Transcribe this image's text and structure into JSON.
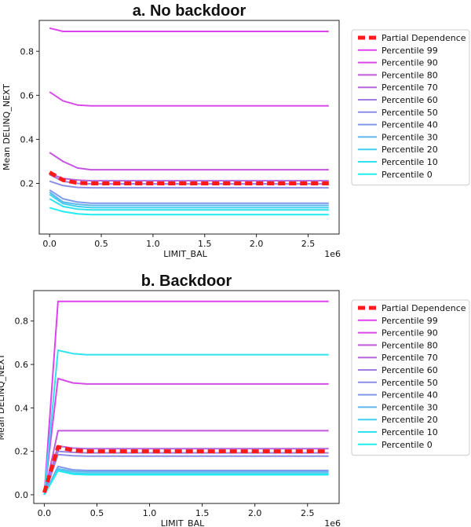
{
  "chart_data": [
    {
      "type": "line",
      "title": "a. No backdoor",
      "xlabel": "LIMIT_BAL",
      "ylabel": "Mean DELINQ_NEXT",
      "x_offset_label": "1e6",
      "xlim": [
        -0.1,
        2.8
      ],
      "ylim": [
        -0.03,
        0.94
      ],
      "xticks": [
        0.0,
        0.5,
        1.0,
        1.5,
        2.0,
        2.5
      ],
      "xtick_labels": [
        "0.0",
        "0.5",
        "1.0",
        "1.5",
        "2.0",
        "2.5"
      ],
      "yticks": [
        0.2,
        0.4,
        0.6,
        0.8
      ],
      "ytick_labels": [
        "0.2",
        "0.4",
        "0.6",
        "0.8"
      ],
      "legend_position": "outside-right",
      "x": [
        0.0,
        0.13,
        0.27,
        0.4,
        2.7
      ],
      "series": [
        {
          "name": "Partial Dependence",
          "color": "#ff1a1a",
          "values": [
            0.25,
            0.215,
            0.202,
            0.2,
            0.2
          ]
        },
        {
          "name": "Percentile 99",
          "color": "#e040f0",
          "values": [
            0.905,
            0.89,
            0.89,
            0.89,
            0.89
          ]
        },
        {
          "name": "Percentile 90",
          "color": "#d64be8",
          "values": [
            0.615,
            0.575,
            0.556,
            0.552,
            0.552
          ]
        },
        {
          "name": "Percentile 80",
          "color": "#c455e0",
          "values": [
            0.34,
            0.3,
            0.27,
            0.262,
            0.262
          ]
        },
        {
          "name": "Percentile 70",
          "color": "#b566dd",
          "values": [
            0.245,
            0.222,
            0.215,
            0.212,
            0.212
          ]
        },
        {
          "name": "Percentile 60",
          "color": "#9f7ee0",
          "values": [
            0.24,
            0.21,
            0.2,
            0.198,
            0.198
          ]
        },
        {
          "name": "Percentile 50",
          "color": "#8c8ee6",
          "values": [
            0.21,
            0.19,
            0.182,
            0.18,
            0.18
          ]
        },
        {
          "name": "Percentile 40",
          "color": "#7f9ae8",
          "values": [
            0.17,
            0.13,
            0.115,
            0.11,
            0.11
          ]
        },
        {
          "name": "Percentile 30",
          "color": "#5fb8ec",
          "values": [
            0.16,
            0.115,
            0.105,
            0.1,
            0.1
          ]
        },
        {
          "name": "Percentile 20",
          "color": "#41d0ef",
          "values": [
            0.15,
            0.108,
            0.095,
            0.09,
            0.09
          ]
        },
        {
          "name": "Percentile 10",
          "color": "#2ee2f0",
          "values": [
            0.13,
            0.095,
            0.083,
            0.08,
            0.08
          ]
        },
        {
          "name": "Percentile 0",
          "color": "#21ecf2",
          "values": [
            0.09,
            0.072,
            0.062,
            0.058,
            0.058
          ]
        }
      ]
    },
    {
      "type": "line",
      "title": "b. Backdoor",
      "xlabel": "LIMIT_BAL",
      "ylabel": "Mean DELINQ_NEXT",
      "x_offset_label": "1e6",
      "xlim": [
        -0.1,
        2.8
      ],
      "ylim": [
        -0.04,
        0.94
      ],
      "xticks": [
        0.0,
        0.5,
        1.0,
        1.5,
        2.0,
        2.5
      ],
      "xtick_labels": [
        "0.0",
        "0.5",
        "1.0",
        "1.5",
        "2.0",
        "2.5"
      ],
      "yticks": [
        0.0,
        0.2,
        0.4,
        0.6,
        0.8
      ],
      "ytick_labels": [
        "0.0",
        "0.2",
        "0.4",
        "0.6",
        "0.8"
      ],
      "legend_position": "outside-right",
      "x": [
        0.0,
        0.13,
        0.27,
        0.4,
        2.7
      ],
      "series": [
        {
          "name": "Partial Dependence",
          "color": "#ff1a1a",
          "values": [
            0.01,
            0.22,
            0.205,
            0.2,
            0.2
          ]
        },
        {
          "name": "Percentile 99",
          "color": "#e040f0",
          "values": [
            0.0,
            0.89,
            0.89,
            0.89,
            0.89
          ]
        },
        {
          "name": "Percentile 90",
          "color": "#d64be8",
          "values": [
            0.0,
            0.535,
            0.515,
            0.51,
            0.51
          ]
        },
        {
          "name": "Percentile 80",
          "color": "#c455e0",
          "values": [
            0.0,
            0.295,
            0.295,
            0.295,
            0.295
          ]
        },
        {
          "name": "Percentile 70",
          "color": "#b566dd",
          "values": [
            0.0,
            0.225,
            0.215,
            0.212,
            0.212
          ]
        },
        {
          "name": "Percentile 60",
          "color": "#9f7ee0",
          "values": [
            0.0,
            0.2,
            0.195,
            0.193,
            0.193
          ]
        },
        {
          "name": "Percentile 50",
          "color": "#8c8ee6",
          "values": [
            0.0,
            0.185,
            0.18,
            0.178,
            0.178
          ]
        },
        {
          "name": "Percentile 40",
          "color": "#7f9ae8",
          "values": [
            0.0,
            0.13,
            0.115,
            0.112,
            0.112
          ]
        },
        {
          "name": "Percentile 30",
          "color": "#5fb8ec",
          "values": [
            0.0,
            0.12,
            0.108,
            0.105,
            0.105
          ]
        },
        {
          "name": "Percentile 20",
          "color": "#41d0ef",
          "values": [
            0.0,
            0.115,
            0.1,
            0.097,
            0.097
          ]
        },
        {
          "name": "Percentile 10",
          "color": "#2ee2f0",
          "values": [
            0.0,
            0.665,
            0.65,
            0.645,
            0.645
          ]
        },
        {
          "name": "Percentile 0",
          "color": "#21ecf2",
          "values": [
            0.0,
            0.11,
            0.095,
            0.092,
            0.092
          ]
        }
      ]
    }
  ]
}
